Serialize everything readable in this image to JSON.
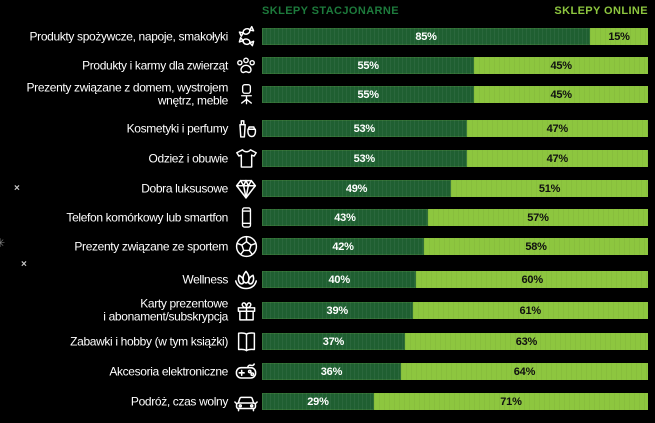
{
  "legend": {
    "stationary": "SKLEPY STACJONARNE",
    "online": "SKLEPY ONLINE"
  },
  "colors": {
    "background": "#000000",
    "stationary_bar": "#1f5f31",
    "online_bar": "#8dc63f",
    "stationary_header_text": "#1d7a3c",
    "online_header_text": "#8dc63f",
    "stationary_value_text": "#ffffff",
    "online_value_text": "#101010",
    "category_text": "#ffffff"
  },
  "rows": [
    {
      "label": "Produkty spożywcze, napoje, smakołyki",
      "icon": "candy-icon",
      "stationary": "85%",
      "online": "15%"
    },
    {
      "label": "Produkty i karmy dla zwierząt",
      "icon": "paw-icon",
      "stationary": "55%",
      "online": "45%"
    },
    {
      "label": "Prezenty związane z domem, wystrojem\nwnętrz, meble",
      "icon": "office-chair-icon",
      "stationary": "55%",
      "online": "45%"
    },
    {
      "label": "Kosmetyki i perfumy",
      "icon": "cosmetics-icon",
      "stationary": "53%",
      "online": "47%"
    },
    {
      "label": "Odzież i obuwie",
      "icon": "tshirt-icon",
      "stationary": "53%",
      "online": "47%"
    },
    {
      "label": "Dobra luksusowe",
      "icon": "diamond-icon",
      "stationary": "49%",
      "online": "51%"
    },
    {
      "label": "Telefon komórkowy lub smartfon",
      "icon": "smartphone-icon",
      "stationary": "43%",
      "online": "57%"
    },
    {
      "label": "Prezenty związane ze sportem",
      "icon": "soccer-ball-icon",
      "stationary": "42%",
      "online": "58%"
    },
    {
      "label": "Wellness",
      "icon": "lotus-icon",
      "stationary": "40%",
      "online": "60%"
    },
    {
      "label": "Karty prezentowe\ni abonament/subskrypcja",
      "icon": "gift-icon",
      "stationary": "39%",
      "online": "61%"
    },
    {
      "label": "Zabawki i hobby (w tym książki)",
      "icon": "open-book-icon",
      "stationary": "37%",
      "online": "63%"
    },
    {
      "label": "Akcesoria elektroniczne",
      "icon": "game-controller-icon",
      "stationary": "36%",
      "online": "64%"
    },
    {
      "label": "Podróż, czas wolny",
      "icon": "car-icon",
      "stationary": "29%",
      "online": "71%"
    }
  ],
  "artifacts": {
    "x1": "×",
    "star": "✳",
    "x2": "×"
  },
  "chart_data": {
    "type": "bar",
    "orientation": "horizontal",
    "stacked": true,
    "title": "",
    "value_format": "percent",
    "xlim": [
      0,
      100
    ],
    "grid": false,
    "legend_position": "top",
    "categories": [
      "Produkty spożywcze, napoje, smakołyki",
      "Produkty i karmy dla zwierząt",
      "Prezenty związane z domem, wystrojem wnętrz, meble",
      "Kosmetyki i perfumy",
      "Odzież i obuwie",
      "Dobra luksusowe",
      "Telefon komórkowy lub smartfon",
      "Prezenty związane ze sportem",
      "Wellness",
      "Karty prezentowe i abonament/subskrypcja",
      "Zabawki i hobby (w tym książki)",
      "Akcesoria elektroniczne",
      "Podróż, czas wolny"
    ],
    "series": [
      {
        "name": "SKLEPY STACJONARNE",
        "color": "#1f5f31",
        "values": [
          85,
          55,
          55,
          53,
          53,
          49,
          43,
          42,
          40,
          39,
          37,
          36,
          29
        ]
      },
      {
        "name": "SKLEPY ONLINE",
        "color": "#8dc63f",
        "values": [
          15,
          45,
          45,
          47,
          47,
          51,
          57,
          58,
          60,
          61,
          63,
          64,
          71
        ]
      }
    ]
  }
}
